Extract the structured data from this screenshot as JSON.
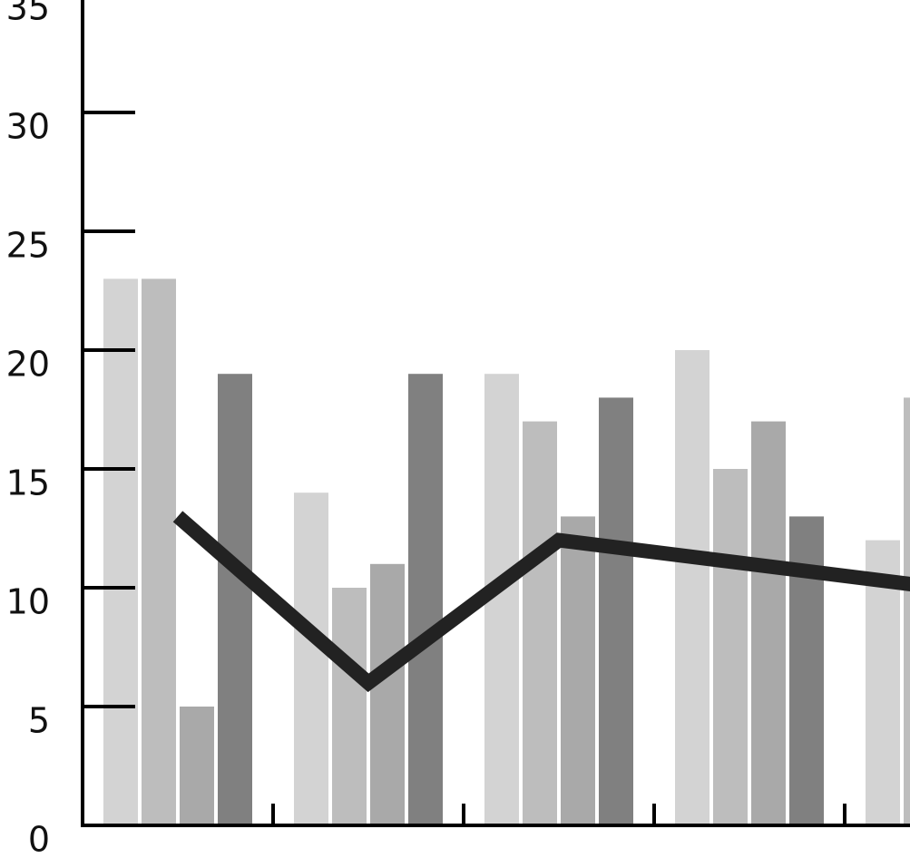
{
  "chart_data": {
    "type": "bar_line",
    "categories": [
      null,
      null,
      null,
      null,
      null
    ],
    "series": [
      {
        "color": "#d3d3d3",
        "values": [
          23,
          14,
          19,
          20,
          12
        ]
      },
      {
        "color": "#bdbdbd",
        "values": [
          23,
          10,
          17,
          15,
          18
        ]
      },
      {
        "color": "#a9a9a9",
        "values": [
          5,
          11,
          13,
          17,
          null
        ]
      },
      {
        "color": "#808080",
        "values": [
          19,
          19,
          18,
          13,
          null
        ]
      }
    ],
    "line": {
      "color": "#222222",
      "values": [
        13,
        6,
        12,
        11,
        10
      ]
    },
    "ylim": [
      0,
      35
    ],
    "yticks": [
      0,
      5,
      10,
      15,
      20,
      25,
      30,
      35
    ]
  }
}
